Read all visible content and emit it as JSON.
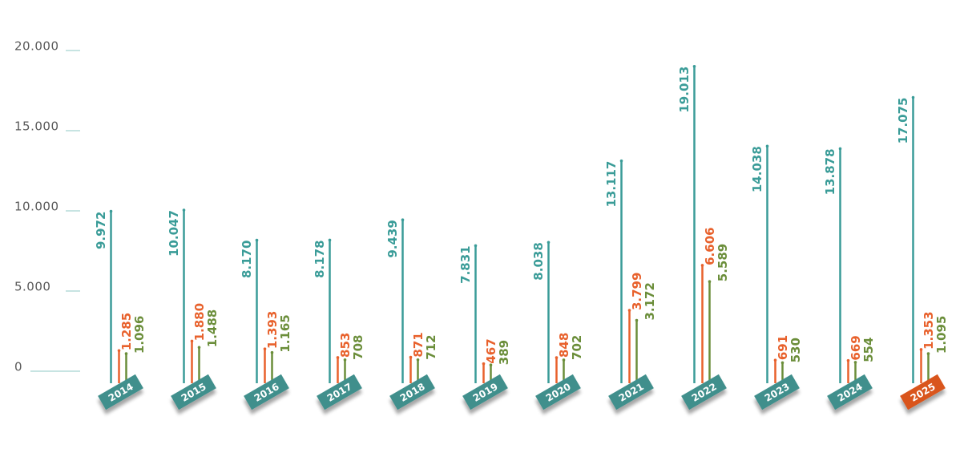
{
  "chart_data": {
    "type": "bar",
    "categories": [
      "2014",
      "2015",
      "2016",
      "2017",
      "2018",
      "2019",
      "2020",
      "2021",
      "2022",
      "2023",
      "2024",
      "2025"
    ],
    "category_colors": [
      "#3f8f8c",
      "#3f8f8c",
      "#3f8f8c",
      "#3f8f8c",
      "#3f8f8c",
      "#3f8f8c",
      "#3f8f8c",
      "#3f8f8c",
      "#3f8f8c",
      "#3f8f8c",
      "#3f8f8c",
      "#d9541f"
    ],
    "series": [
      {
        "color": "#3a9c98",
        "values": [
          9972,
          10047,
          8170,
          8178,
          9439,
          7831,
          8038,
          13117,
          19013,
          14038,
          13878,
          17075
        ],
        "value_labels": [
          "9.972",
          "10.047",
          "8.170",
          "8.178",
          "9.439",
          "7.831",
          "8.038",
          "13.117",
          "19.013",
          "14.038",
          "13.878",
          "17.075"
        ]
      },
      {
        "color": "#e8612c",
        "values": [
          1285,
          1880,
          1393,
          853,
          871,
          467,
          848,
          3799,
          6606,
          691,
          669,
          1353
        ],
        "value_labels": [
          "1.285",
          "1.880",
          "1.393",
          "853",
          "871",
          "467",
          "848",
          "3.799",
          "6.606",
          "691",
          "669",
          "1.353"
        ]
      },
      {
        "color": "#6b8e3a",
        "values": [
          1096,
          1488,
          1165,
          708,
          712,
          389,
          702,
          3172,
          5589,
          530,
          554,
          1095
        ],
        "value_labels": [
          "1.096",
          "1.488",
          "1.165",
          "708",
          "712",
          "389",
          "702",
          "3.172",
          "5.589",
          "530",
          "554",
          "1.095"
        ]
      }
    ],
    "ylim": [
      0,
      20000
    ],
    "yticks": [
      0,
      {
        "value": 5000,
        "label": "5.000"
      },
      {
        "value": 10000,
        "label": "10.000"
      },
      {
        "value": 15000,
        "label": "15.000"
      },
      {
        "value": 20000,
        "label": "20.000"
      }
    ],
    "tick_color": "#8fc9c6"
  }
}
